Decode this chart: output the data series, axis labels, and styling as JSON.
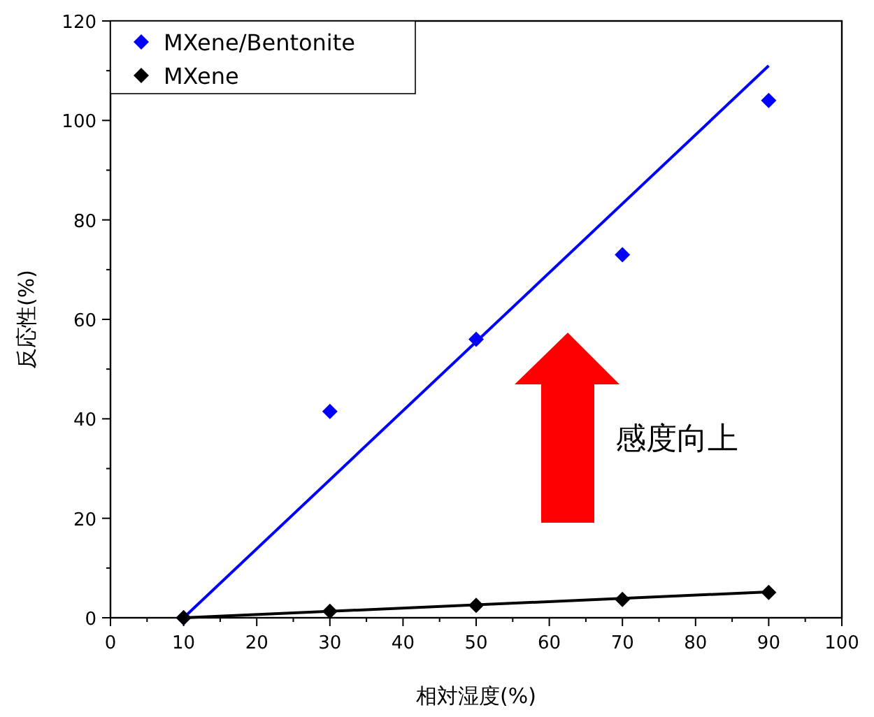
{
  "chart_data": {
    "type": "scatter",
    "xlabel": "相対湿度(%)",
    "ylabel": "反応性(%)",
    "xlim": [
      0,
      100
    ],
    "ylim": [
      0,
      120
    ],
    "xticks": [
      0,
      10,
      20,
      30,
      40,
      50,
      60,
      70,
      80,
      90,
      100
    ],
    "yticks": [
      0,
      20,
      40,
      60,
      80,
      100,
      120
    ],
    "legend": "top left",
    "marker": "diamond",
    "grid": false,
    "annotations": [
      "感度向上"
    ],
    "series": [
      {
        "name": "MXene/Bentonite",
        "color": "#0000ff",
        "x": [
          10,
          30,
          50,
          70,
          90
        ],
        "values": [
          0,
          41.5,
          56,
          73,
          104
        ]
      },
      {
        "name": "MXene",
        "color": "#000000",
        "x": [
          10,
          30,
          50,
          70,
          90
        ],
        "values": [
          0,
          1.3,
          2.5,
          3.7,
          5.1
        ]
      },
      {
        "type": "line",
        "marker": "none",
        "color": "#0000ff",
        "x": [
          10,
          90
        ],
        "values": [
          0,
          111
        ]
      },
      {
        "type": "line",
        "marker": "none",
        "color": "#000000",
        "x": [
          10,
          90
        ],
        "values": [
          0,
          5.2
        ]
      }
    ]
  }
}
